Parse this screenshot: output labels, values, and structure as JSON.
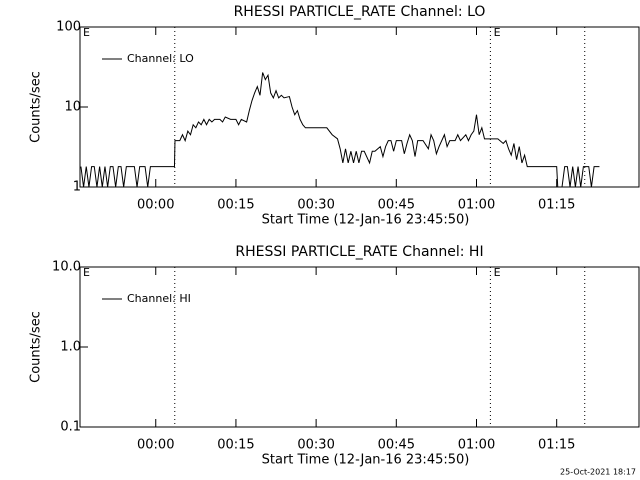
{
  "chart_data": [
    {
      "type": "line",
      "title": "RHESSI PARTICLE_RATE Channel: LO",
      "xlabel": "Start Time (12-Jan-16 23:45:50)",
      "ylabel": "Counts/sec",
      "xlim": [
        -14.17,
        90.4
      ],
      "xticks": [
        {
          "value": 0,
          "label": "00:00"
        },
        {
          "value": 15,
          "label": "00:15"
        },
        {
          "value": 30,
          "label": "00:30"
        },
        {
          "value": 45,
          "label": "00:45"
        },
        {
          "value": 60,
          "label": "01:00"
        },
        {
          "value": 75,
          "label": "01:15"
        }
      ],
      "ylim": [
        1,
        100
      ],
      "yticks": [
        1,
        10,
        100
      ],
      "log_y": true,
      "legend": "upper left",
      "vlines": [
        3.56,
        62.6,
        80.25
      ],
      "annotations": [
        {
          "x": -13.6,
          "text": "E"
        },
        {
          "x": 63.2,
          "text": "E"
        }
      ],
      "x": [
        -14,
        -13.5,
        -13,
        -12.5,
        -12,
        -11.5,
        -11,
        -10.5,
        -10,
        -9.5,
        -9,
        -8.5,
        -8,
        -7.5,
        -7,
        -6.5,
        -6,
        -5.5,
        -5,
        -4,
        -3.5,
        -3,
        -2,
        -1.5,
        -1,
        0,
        1,
        2,
        3.5,
        3.6,
        4.5,
        5,
        5.5,
        6,
        6.5,
        7,
        7.5,
        8,
        8.5,
        9,
        9.5,
        10,
        10.5,
        11,
        12,
        12.5,
        13,
        14,
        15,
        15.5,
        16,
        17,
        17.5,
        18,
        18.5,
        19,
        19.5,
        20,
        20.5,
        21,
        21.5,
        22,
        22.5,
        23,
        23.5,
        24,
        25,
        25.5,
        26,
        26.5,
        27,
        27.5,
        28,
        29,
        30,
        31,
        32,
        33,
        34,
        34.5,
        35,
        35.5,
        36,
        36.5,
        37,
        37.5,
        38,
        38.5,
        39,
        40,
        40.5,
        41,
        42,
        42.5,
        43,
        43.5,
        44,
        44.5,
        45,
        46,
        46.5,
        47,
        47.5,
        48,
        48.5,
        49,
        50,
        51,
        51.5,
        52,
        52.5,
        53,
        54,
        54.5,
        55,
        56,
        56.5,
        57,
        58,
        58.5,
        59,
        59.5,
        60,
        60.5,
        61,
        61.5,
        62,
        63,
        64,
        65,
        65.5,
        66,
        66.5,
        67,
        67.5,
        68,
        68.5,
        69,
        69.5,
        70,
        72,
        74,
        75,
        75.2,
        76,
        76.5,
        77,
        77.5,
        78,
        78.5,
        79,
        79.5,
        80,
        81,
        81.5,
        82,
        83
      ],
      "series": [
        {
          "name": "Channel: LO",
          "color": "#000000",
          "values": [
            1.8,
            1,
            1.8,
            1,
            1.8,
            1.8,
            1,
            1.8,
            1,
            1.8,
            1,
            1.8,
            1.8,
            1,
            1.8,
            1.8,
            1,
            1.8,
            1.8,
            1.8,
            1,
            1.8,
            1.8,
            1,
            1.8,
            1.8,
            1.8,
            1.8,
            1.8,
            3.8,
            3.8,
            4.5,
            3.8,
            5,
            4.5,
            6,
            5.5,
            6.5,
            6,
            7,
            6,
            7,
            6.5,
            7,
            7,
            6.5,
            7.5,
            7,
            7,
            6,
            7,
            6.5,
            9,
            12,
            15,
            18,
            14,
            27,
            22,
            25,
            15,
            13,
            16,
            13,
            14,
            13,
            13.5,
            10,
            8,
            9,
            7,
            6,
            5.5,
            5.5,
            5.5,
            5.5,
            5.5,
            4.5,
            4,
            3,
            2,
            3,
            2,
            2.8,
            2,
            2.8,
            2,
            2.8,
            2.8,
            2,
            2.8,
            2.8,
            3.2,
            2.4,
            3.2,
            3.8,
            3.8,
            2.8,
            3.8,
            3.8,
            2.6,
            3.5,
            4.5,
            3.8,
            2.4,
            3.8,
            3.8,
            3,
            4.5,
            3.8,
            2.6,
            3.2,
            4.5,
            3.2,
            3.8,
            3.8,
            4.5,
            3.8,
            4.5,
            3.8,
            4.5,
            5,
            8,
            4.5,
            5.5,
            4,
            4,
            4,
            4,
            3.5,
            3.8,
            3,
            2.5,
            3.5,
            2.2,
            3.2,
            2,
            2.5,
            1.8,
            1.8,
            1.8,
            1.8,
            1.8,
            1,
            1,
            1.8,
            1.8,
            1,
            1.8,
            1,
            1.8,
            1,
            1.8,
            1.8,
            1,
            1.8,
            1.8
          ]
        }
      ]
    },
    {
      "type": "line",
      "title": "RHESSI PARTICLE_RATE Channel: HI",
      "xlabel": "Start Time (12-Jan-16 23:45:50)",
      "ylabel": "Counts/sec",
      "xlim": [
        -14.17,
        90.4
      ],
      "xticks": [
        {
          "value": 0,
          "label": "00:00"
        },
        {
          "value": 15,
          "label": "00:15"
        },
        {
          "value": 30,
          "label": "00:30"
        },
        {
          "value": 45,
          "label": "00:45"
        },
        {
          "value": 60,
          "label": "01:00"
        },
        {
          "value": 75,
          "label": "01:15"
        }
      ],
      "ylim": [
        0.1,
        10
      ],
      "yticks": [
        0.1,
        {
          "value": 1,
          "label": "1.0"
        },
        {
          "value": 10,
          "label": "10.0"
        }
      ],
      "log_y": true,
      "legend": "upper left",
      "vlines": [
        3.56,
        62.6,
        80.25
      ],
      "annotations": [
        {
          "x": -13.6,
          "text": "E"
        },
        {
          "x": 63.2,
          "text": "E"
        }
      ],
      "x": [],
      "series": [
        {
          "name": "Channel: HI",
          "color": "#000000",
          "values": []
        }
      ]
    }
  ],
  "timestamp": "25-Oct-2021 18:17"
}
